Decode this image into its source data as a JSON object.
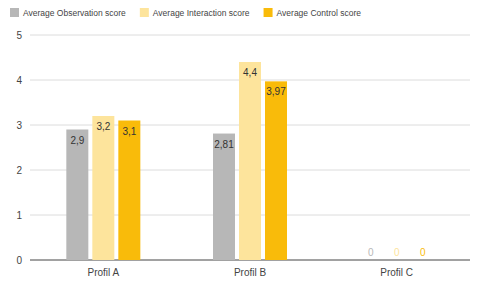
{
  "chart_data": {
    "type": "bar",
    "categories": [
      "Profil A",
      "Profil B",
      "Profil C"
    ],
    "series": [
      {
        "name": "Average Observation score",
        "color": "#b7b7b7",
        "values": [
          2.9,
          2.81,
          0
        ],
        "value_labels": [
          "2,9",
          "2,81",
          "0"
        ]
      },
      {
        "name": "Average Interaction score",
        "color": "#fde49c",
        "values": [
          3.2,
          4.4,
          0
        ],
        "value_labels": [
          "3,2",
          "4,4",
          "0"
        ]
      },
      {
        "name": "Average Control score",
        "color": "#f9bb0a",
        "values": [
          3.1,
          3.97,
          0
        ],
        "value_labels": [
          "3,1",
          "3,97",
          "0"
        ]
      }
    ],
    "ylim": [
      0,
      5
    ],
    "yticks": [
      0,
      1,
      2,
      3,
      4,
      5
    ],
    "grid": true,
    "legend": "top-left",
    "data_labels": true
  }
}
